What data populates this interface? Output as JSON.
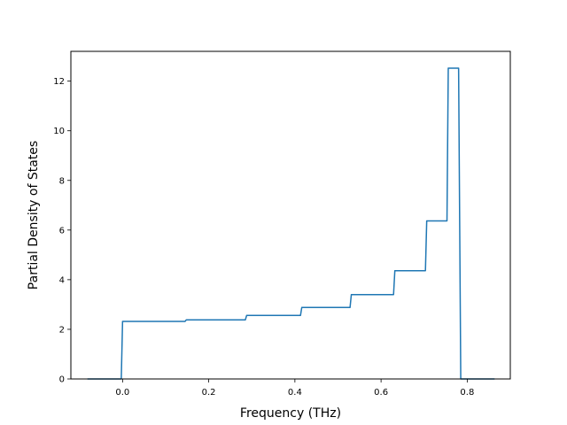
{
  "chart_data": {
    "type": "line",
    "title": "",
    "xlabel": "Frequency (THz)",
    "ylabel": "Partial Density of States",
    "xlim": [
      -0.12,
      0.9
    ],
    "ylim": [
      0,
      13.2
    ],
    "xticks": [
      0.0,
      0.2,
      0.4,
      0.6,
      0.8
    ],
    "xtick_labels": [
      "0.0",
      "0.2",
      "0.4",
      "0.6",
      "0.8"
    ],
    "yticks": [
      0,
      2,
      4,
      6,
      8,
      10,
      12
    ],
    "ytick_labels": [
      "0",
      "2",
      "4",
      "6",
      "8",
      "10",
      "12"
    ],
    "grid": false,
    "legend": "none",
    "series": [
      {
        "color": "#1f77b4",
        "x": [
          -0.08,
          -0.003,
          0.0,
          0.145,
          0.148,
          0.285,
          0.288,
          0.413,
          0.416,
          0.528,
          0.531,
          0.629,
          0.632,
          0.703,
          0.706,
          0.753,
          0.756,
          0.78,
          0.785,
          0.862
        ],
        "y": [
          0.0,
          0.0,
          2.32,
          2.32,
          2.38,
          2.38,
          2.56,
          2.56,
          2.88,
          2.88,
          3.4,
          3.4,
          4.36,
          4.36,
          6.37,
          6.37,
          12.52,
          12.52,
          0.0,
          0.0
        ]
      }
    ]
  }
}
